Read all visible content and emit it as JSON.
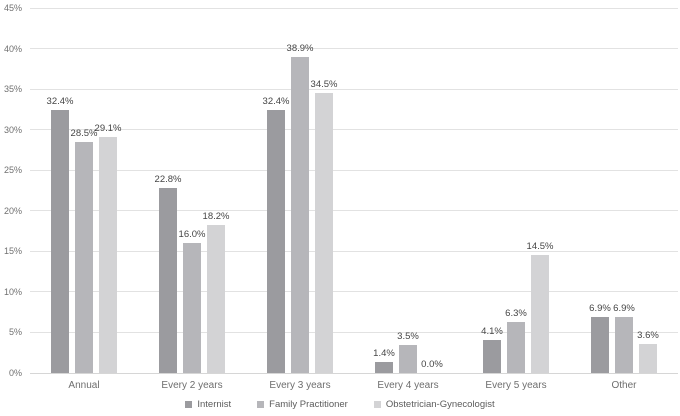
{
  "colors": {
    "background": "#ffffff",
    "gridline": "#e2e2e2",
    "tick_label": "#707070",
    "data_label": "#454545",
    "legend_label": "#5c5c5c",
    "series_colors": [
      "#9b9b9f",
      "#b6b6ba",
      "#d3d3d5"
    ]
  },
  "chart_data": {
    "type": "bar",
    "title": "",
    "xlabel": "",
    "ylabel": "",
    "grid": true,
    "legend_position": "bottom",
    "ylim": [
      0,
      45
    ],
    "ytick_step": 5,
    "ytick_labels": [
      "0%",
      "5%",
      "10%",
      "15%",
      "20%",
      "25%",
      "30%",
      "35%",
      "40%",
      "45%"
    ],
    "categories": [
      "Annual",
      "Every 2 years",
      "Every 3 years",
      "Every 4 years",
      "Every 5 years",
      "Other"
    ],
    "series": [
      {
        "name": "Internist",
        "values": [
          32.4,
          22.8,
          32.4,
          1.4,
          4.1,
          6.9
        ],
        "labels": [
          "32.4%",
          "22.8%",
          "32.4%",
          "1.4%",
          "4.1%",
          "6.9%"
        ]
      },
      {
        "name": "Family Practitioner",
        "values": [
          28.5,
          16.0,
          38.9,
          3.5,
          6.3,
          6.9
        ],
        "labels": [
          "28.5%",
          "16.0%",
          "38.9%",
          "3.5%",
          "6.3%",
          "6.9%"
        ]
      },
      {
        "name": "Obstetrician-Gynecologist",
        "values": [
          29.1,
          18.2,
          34.5,
          0.0,
          14.5,
          3.6
        ],
        "labels": [
          "29.1%",
          "18.2%",
          "34.5%",
          "0.0%",
          "14.5%",
          "3.6%"
        ]
      }
    ]
  }
}
